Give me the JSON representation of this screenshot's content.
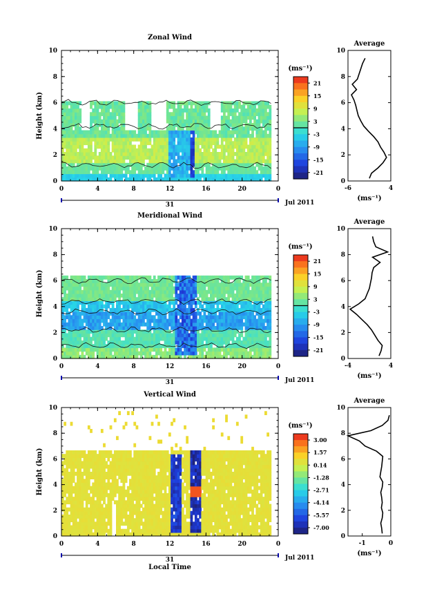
{
  "figure": {
    "date_label": "Jul 2011",
    "day_label": "31"
  },
  "chart_data": [
    {
      "type": "heatmap",
      "title": "Zonal Wind",
      "ylabel": "Height (km)",
      "xlabel": "",
      "xlim": [
        0,
        24
      ],
      "ylim": [
        0,
        10
      ],
      "xticks": [
        "0",
        "4",
        "8",
        "12",
        "16",
        "20",
        "0"
      ],
      "yticks": [
        "0",
        "2",
        "4",
        "6",
        "8",
        "10"
      ],
      "colorbar": {
        "unit": "(ms⁻¹)",
        "ticks": [
          "21",
          "15",
          "9",
          "3",
          "-3",
          "-9",
          "-15",
          "-21"
        ],
        "range": [
          -24,
          24
        ]
      },
      "profile": {
        "title": "Average",
        "xlabel": "(ms⁻¹)",
        "xlim": [
          -6,
          4
        ],
        "xticks": [
          "-6",
          "4"
        ],
        "h": [
          0.2,
          0.6,
          1.0,
          1.4,
          1.8,
          2.2,
          2.6,
          3.0,
          3.4,
          3.8,
          4.2,
          4.6,
          5.0,
          5.4,
          5.8,
          6.2,
          6.6,
          7.0,
          7.4,
          7.8,
          8.2,
          8.6,
          9.0,
          9.4
        ],
        "v": [
          -1.0,
          -0.5,
          1.0,
          2.2,
          3.0,
          2.4,
          1.6,
          1.0,
          0.0,
          -1.2,
          -2.3,
          -3.0,
          -3.6,
          -3.9,
          -4.2,
          -4.6,
          -5.2,
          -4.0,
          -5.0,
          -3.8,
          -3.4,
          -3.0,
          -2.6,
          -2.0
        ]
      }
    },
    {
      "type": "heatmap",
      "title": "Meridional Wind",
      "ylabel": "Height (km)",
      "xlabel": "",
      "xlim": [
        0,
        24
      ],
      "ylim": [
        0,
        10
      ],
      "xticks": [
        "0",
        "4",
        "8",
        "12",
        "16",
        "20",
        "0"
      ],
      "yticks": [
        "0",
        "2",
        "4",
        "6",
        "8",
        "10"
      ],
      "colorbar": {
        "unit": "(ms⁻¹)",
        "ticks": [
          "21",
          "15",
          "9",
          "3",
          "-3",
          "-9",
          "-15",
          "-21"
        ],
        "range": [
          -24,
          24
        ]
      },
      "profile": {
        "title": "Average",
        "xlabel": "(ms⁻¹)",
        "xlim": [
          -4,
          4
        ],
        "xticks": [
          "-4",
          "4"
        ],
        "h": [
          0.2,
          0.6,
          1.0,
          1.4,
          1.8,
          2.2,
          2.6,
          3.0,
          3.4,
          3.8,
          4.2,
          4.6,
          5.0,
          5.4,
          5.8,
          6.2,
          6.6,
          7.0,
          7.4,
          7.8,
          8.2,
          8.6,
          9.0,
          9.4
        ],
        "v": [
          1.8,
          2.2,
          2.4,
          1.6,
          1.0,
          0.4,
          -0.4,
          -1.4,
          -2.4,
          -3.6,
          -2.0,
          -0.8,
          -0.4,
          0.0,
          0.2,
          0.4,
          0.5,
          0.8,
          2.0,
          0.6,
          3.4,
          1.2,
          0.8,
          0.6
        ]
      }
    },
    {
      "type": "heatmap",
      "title": "Vertical Wind",
      "ylabel": "Height (km)",
      "xlabel": "Local Time",
      "xlim": [
        0,
        24
      ],
      "ylim": [
        0,
        10
      ],
      "xticks": [
        "0",
        "4",
        "8",
        "12",
        "16",
        "20",
        "0"
      ],
      "yticks": [
        "0",
        "2",
        "4",
        "6",
        "8",
        "10"
      ],
      "colorbar": {
        "unit": "(ms⁻¹)",
        "ticks": [
          "3.00",
          "1.57",
          "0.14",
          "-1.28",
          "-2.71",
          "-4.14",
          "-5.57",
          "-7.00"
        ],
        "range": [
          -7.7,
          3.7
        ]
      },
      "profile": {
        "title": "Average",
        "xlabel": "(ms⁻¹)",
        "xlim": [
          -1.5,
          0
        ],
        "xticks": [
          "-1",
          "0"
        ],
        "h": [
          0.2,
          0.6,
          1.0,
          1.4,
          1.8,
          2.2,
          2.6,
          3.0,
          3.4,
          3.8,
          4.2,
          4.6,
          5.0,
          5.4,
          5.8,
          6.2,
          6.6,
          7.0,
          7.4,
          7.8,
          8.2,
          8.6,
          9.0,
          9.4
        ],
        "v": [
          -0.3,
          -0.32,
          -0.35,
          -0.3,
          -0.28,
          -0.33,
          -0.3,
          -0.32,
          -0.35,
          -0.3,
          -0.28,
          -0.38,
          -0.35,
          -0.32,
          -0.3,
          -0.28,
          -0.5,
          -0.9,
          -1.1,
          -1.5,
          -0.7,
          -0.3,
          -0.1,
          -0.05
        ]
      }
    }
  ]
}
